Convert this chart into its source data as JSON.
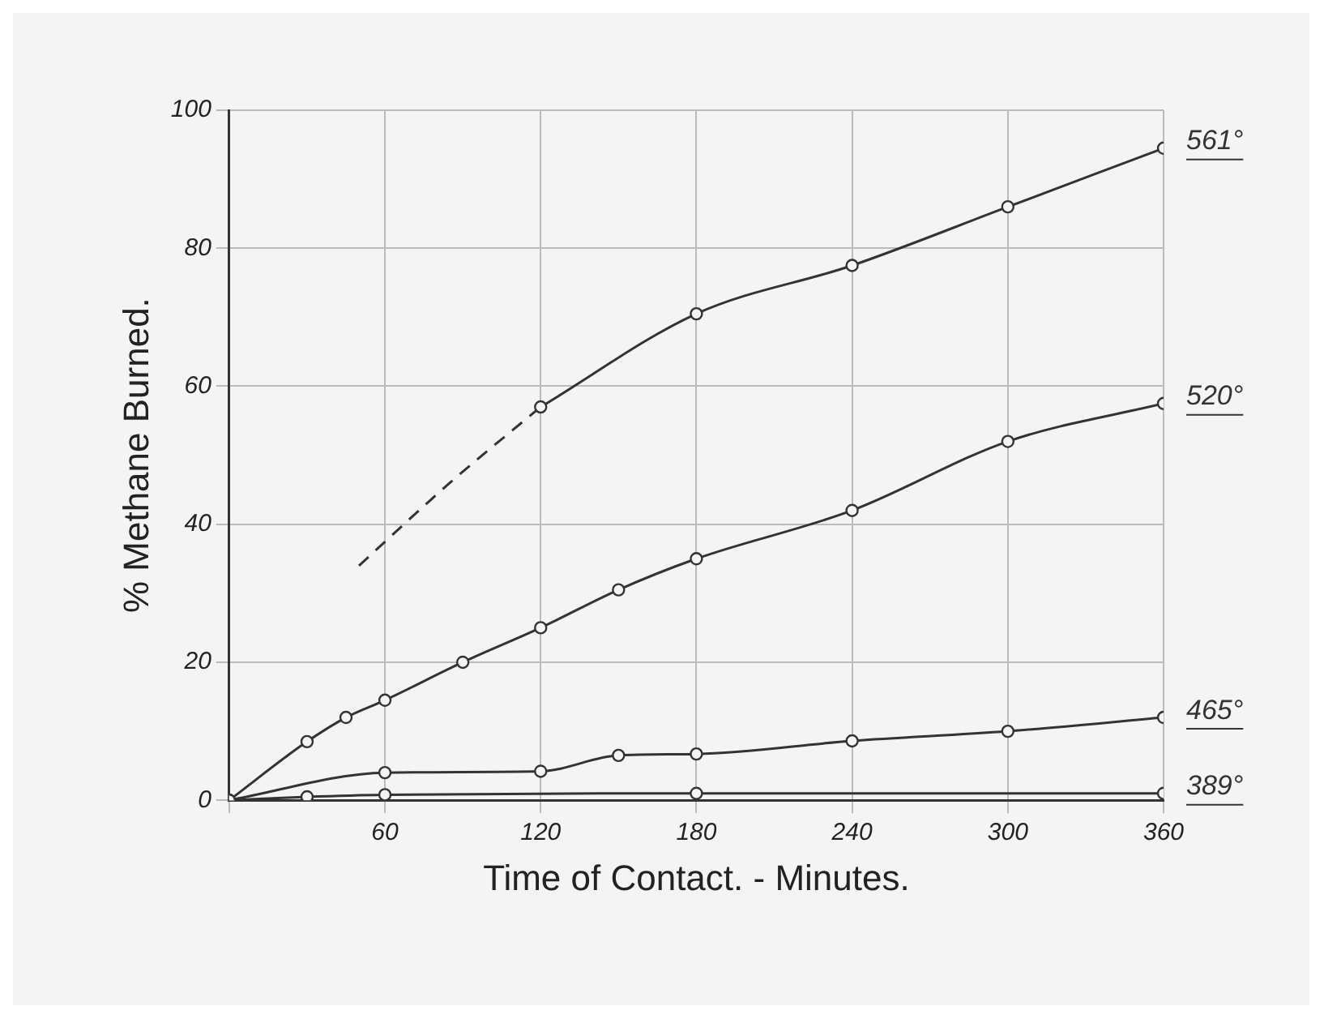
{
  "chart_data": {
    "type": "line",
    "xlabel": "Time of Contact. - Minutes.",
    "ylabel": "% Methane Burned.",
    "xlim": [
      0,
      360
    ],
    "ylim": [
      0,
      100
    ],
    "xticks": [
      {
        "value": 0,
        "label": null
      },
      60,
      120,
      180,
      240,
      300,
      360
    ],
    "yticks": [
      0,
      20,
      40,
      60,
      80,
      100
    ],
    "grid": true,
    "legend": false,
    "marker": "circle",
    "line_style": "solid",
    "series": [
      {
        "name": "561°",
        "color": "#333333",
        "x": [
          120,
          180,
          240,
          300,
          360
        ],
        "values": [
          57,
          70.5,
          77.5,
          86,
          94.5
        ]
      },
      {
        "color": "#333333",
        "x": [
          50,
          85,
          120
        ],
        "values": [
          34,
          46,
          57
        ],
        "line_style": "dashed",
        "marker": "none"
      },
      {
        "name": "520°",
        "color": "#333333",
        "x": [
          0,
          30,
          45,
          60,
          90,
          120,
          150,
          180,
          240,
          300,
          360
        ],
        "values": [
          0,
          8.5,
          12,
          14.5,
          20,
          25,
          30.5,
          35,
          42,
          52,
          57.5
        ]
      },
      {
        "name": "465°",
        "color": "#333333",
        "x": [
          0,
          60,
          120,
          150,
          180,
          240,
          300,
          360
        ],
        "values": [
          0,
          4,
          4.2,
          6.5,
          6.7,
          8.6,
          10,
          12
        ]
      },
      {
        "name": "389°",
        "color": "#333333",
        "x": [
          0,
          30,
          60,
          180,
          360
        ],
        "values": [
          0,
          0.5,
          0.8,
          1,
          1
        ]
      }
    ]
  }
}
